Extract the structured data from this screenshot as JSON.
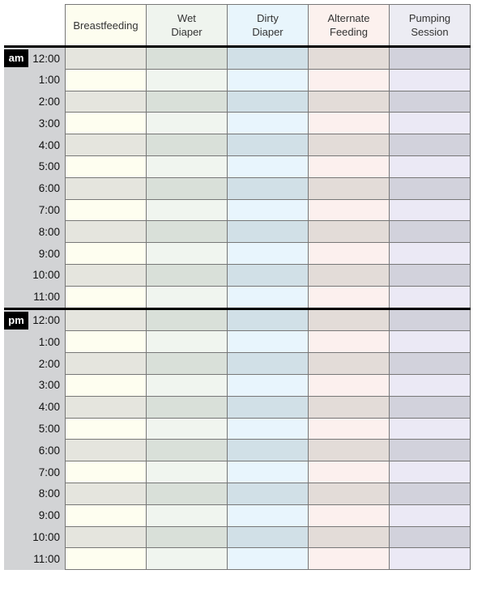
{
  "columns": [
    {
      "label_line1": "Breastfeeding",
      "label_line2": "",
      "header_color": "#fdfdef",
      "shaded_color": "#e5e5de",
      "light_color": "#fefef0"
    },
    {
      "label_line1": "Wet",
      "label_line2": "Diaper",
      "header_color": "#eff4ee",
      "shaded_color": "#d9e0d9",
      "light_color": "#f0f5ef"
    },
    {
      "label_line1": "Dirty",
      "label_line2": "Diaper",
      "header_color": "#e8f5fc",
      "shaded_color": "#d1e0e7",
      "light_color": "#e8f5fd"
    },
    {
      "label_line1": "Alternate",
      "label_line2": "Feeding",
      "header_color": "#fcf1ee",
      "shaded_color": "#e3dcd8",
      "light_color": "#fcf0ee"
    },
    {
      "label_line1": "Pumping",
      "label_line2": "Session",
      "header_color": "#ececf3",
      "shaded_color": "#d2d2dc",
      "light_color": "#ebe9f5"
    }
  ],
  "periods": [
    {
      "label": "am",
      "times": [
        "12:00",
        "1:00",
        "2:00",
        "3:00",
        "4:00",
        "5:00",
        "6:00",
        "7:00",
        "8:00",
        "9:00",
        "10:00",
        "11:00"
      ]
    },
    {
      "label": "pm",
      "times": [
        "12:00",
        "1:00",
        "2:00",
        "3:00",
        "4:00",
        "5:00",
        "6:00",
        "7:00",
        "8:00",
        "9:00",
        "10:00",
        "11:00"
      ]
    }
  ]
}
